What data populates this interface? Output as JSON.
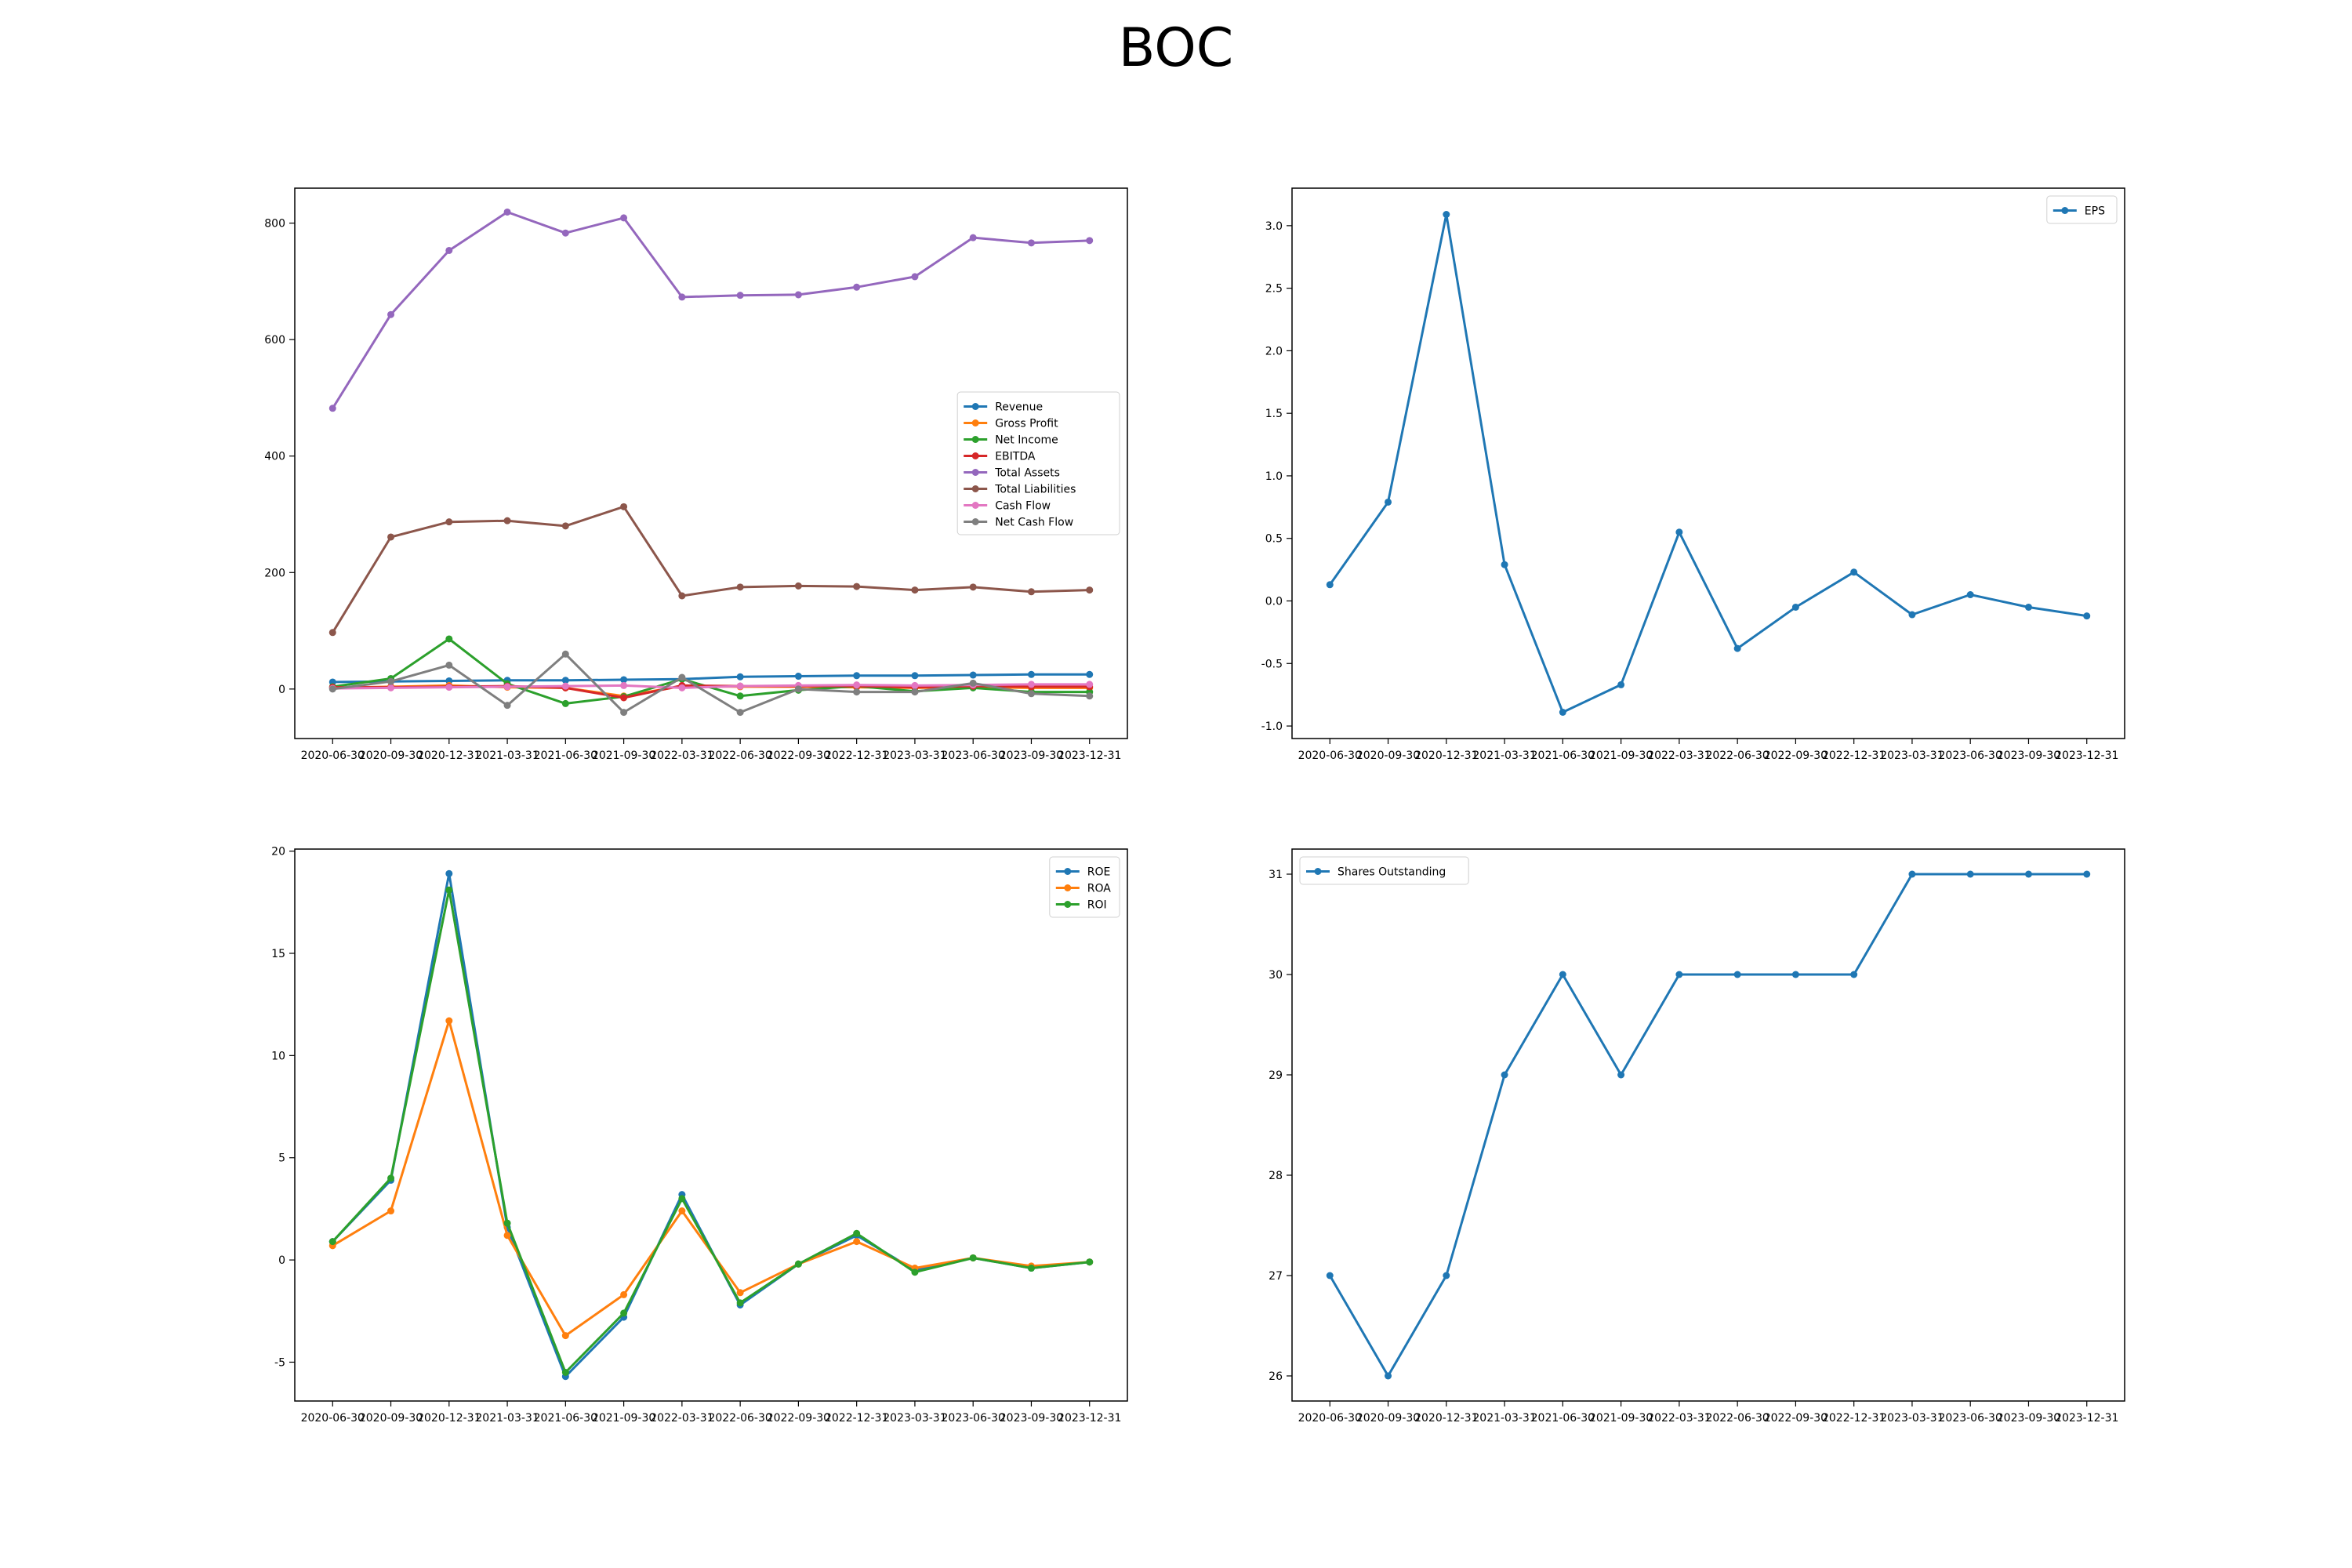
{
  "title": "BOC",
  "colors": {
    "blue": "#1f77b4",
    "orange": "#ff7f0e",
    "green": "#2ca02c",
    "red": "#d62728",
    "purple": "#9467bd",
    "brown": "#8c564b",
    "pink": "#e377c2",
    "gray": "#7f7f7f"
  },
  "chart_data": [
    {
      "type": "line",
      "title": "",
      "categories": [
        "2020-06-30",
        "2020-09-30",
        "2020-12-31",
        "2021-03-31",
        "2021-06-30",
        "2021-09-30",
        "2022-03-31",
        "2022-06-30",
        "2022-09-30",
        "2022-12-31",
        "2023-03-31",
        "2023-06-30",
        "2023-09-30",
        "2023-12-31"
      ],
      "ylim": [
        -85,
        860
      ],
      "yticks": [
        0,
        200,
        400,
        600,
        800
      ],
      "legend": "center-right",
      "series": [
        {
          "name": "Revenue",
          "color": "blue",
          "values": [
            12,
            13,
            14,
            15,
            15,
            16,
            17,
            21,
            22,
            23,
            23,
            24,
            25,
            25
          ]
        },
        {
          "name": "Gross Profit",
          "color": "orange",
          "values": [
            2,
            4,
            6,
            3,
            2,
            -12,
            5,
            4,
            4,
            3,
            2,
            3,
            2,
            2
          ]
        },
        {
          "name": "Net Income",
          "color": "green",
          "values": [
            4,
            18,
            86,
            9,
            -25,
            -13,
            17,
            -12,
            -2,
            5,
            -4,
            2,
            -5,
            -5
          ]
        },
        {
          "name": "EBITDA",
          "color": "red",
          "values": [
            3,
            3,
            4,
            5,
            2,
            -15,
            6,
            5,
            5,
            5,
            3,
            5,
            4,
            4
          ]
        },
        {
          "name": "Total Assets",
          "color": "purple",
          "values": [
            482,
            643,
            753,
            819,
            783,
            809,
            673,
            676,
            677,
            690,
            708,
            775,
            766,
            770
          ]
        },
        {
          "name": "Total Liabilities",
          "color": "brown",
          "values": [
            97,
            261,
            287,
            289,
            280,
            313,
            160,
            175,
            177,
            176,
            170,
            175,
            167,
            170
          ]
        },
        {
          "name": "Cash Flow",
          "color": "pink",
          "values": [
            1,
            2,
            3,
            4,
            5,
            6,
            2,
            5,
            6,
            7,
            6,
            7,
            8,
            8
          ]
        },
        {
          "name": "Net Cash Flow",
          "color": "gray",
          "values": [
            0,
            13,
            41,
            -28,
            60,
            -40,
            20,
            -40,
            0,
            -5,
            -5,
            10,
            -8,
            -12
          ]
        }
      ]
    },
    {
      "type": "line",
      "title": "",
      "categories": [
        "2020-06-30",
        "2020-09-30",
        "2020-12-31",
        "2021-03-31",
        "2021-06-30",
        "2021-09-30",
        "2022-03-31",
        "2022-06-30",
        "2022-09-30",
        "2022-12-31",
        "2023-03-31",
        "2023-06-30",
        "2023-09-30",
        "2023-12-31"
      ],
      "ylim": [
        -1.1,
        3.3
      ],
      "yticks": [
        -1.0,
        -0.5,
        0.0,
        0.5,
        1.0,
        1.5,
        2.0,
        2.5,
        3.0
      ],
      "legend": "top-right",
      "series": [
        {
          "name": "EPS",
          "color": "blue",
          "values": [
            0.13,
            0.79,
            3.09,
            0.29,
            -0.89,
            -0.67,
            0.55,
            -0.38,
            -0.05,
            0.23,
            -0.11,
            0.05,
            -0.05,
            -0.12
          ]
        }
      ]
    },
    {
      "type": "line",
      "title": "",
      "categories": [
        "2020-06-30",
        "2020-09-30",
        "2020-12-31",
        "2021-03-31",
        "2021-06-30",
        "2021-09-30",
        "2022-03-31",
        "2022-06-30",
        "2022-09-30",
        "2022-12-31",
        "2023-03-31",
        "2023-06-30",
        "2023-09-30",
        "2023-12-31"
      ],
      "ylim": [
        -6.9,
        20.1
      ],
      "yticks": [
        -5,
        0,
        5,
        10,
        15,
        20
      ],
      "legend": "top-right",
      "series": [
        {
          "name": "ROE",
          "color": "blue",
          "values": [
            0.9,
            3.9,
            18.9,
            1.6,
            -5.7,
            -2.8,
            3.2,
            -2.2,
            -0.2,
            1.2,
            -0.5,
            0.1,
            -0.4,
            -0.1
          ]
        },
        {
          "name": "ROA",
          "color": "orange",
          "values": [
            0.7,
            2.4,
            11.7,
            1.2,
            -3.7,
            -1.7,
            2.4,
            -1.6,
            -0.2,
            0.9,
            -0.4,
            0.1,
            -0.3,
            -0.1
          ]
        },
        {
          "name": "ROI",
          "color": "green",
          "values": [
            0.9,
            4.0,
            18.1,
            1.8,
            -5.5,
            -2.6,
            3.0,
            -2.1,
            -0.2,
            1.3,
            -0.6,
            0.1,
            -0.4,
            -0.1
          ]
        }
      ]
    },
    {
      "type": "line",
      "title": "",
      "categories": [
        "2020-06-30",
        "2020-09-30",
        "2020-12-31",
        "2021-03-31",
        "2021-06-30",
        "2021-09-30",
        "2022-03-31",
        "2022-06-30",
        "2022-09-30",
        "2022-12-31",
        "2023-03-31",
        "2023-06-30",
        "2023-09-30",
        "2023-12-31"
      ],
      "ylim": [
        25.75,
        31.25
      ],
      "yticks": [
        26,
        27,
        28,
        29,
        30,
        31
      ],
      "legend": "top-left",
      "series": [
        {
          "name": "Shares Outstanding",
          "color": "blue",
          "values": [
            27,
            26,
            27,
            29,
            30,
            29,
            30,
            30,
            30,
            30,
            31,
            31,
            31,
            31
          ]
        }
      ]
    }
  ]
}
